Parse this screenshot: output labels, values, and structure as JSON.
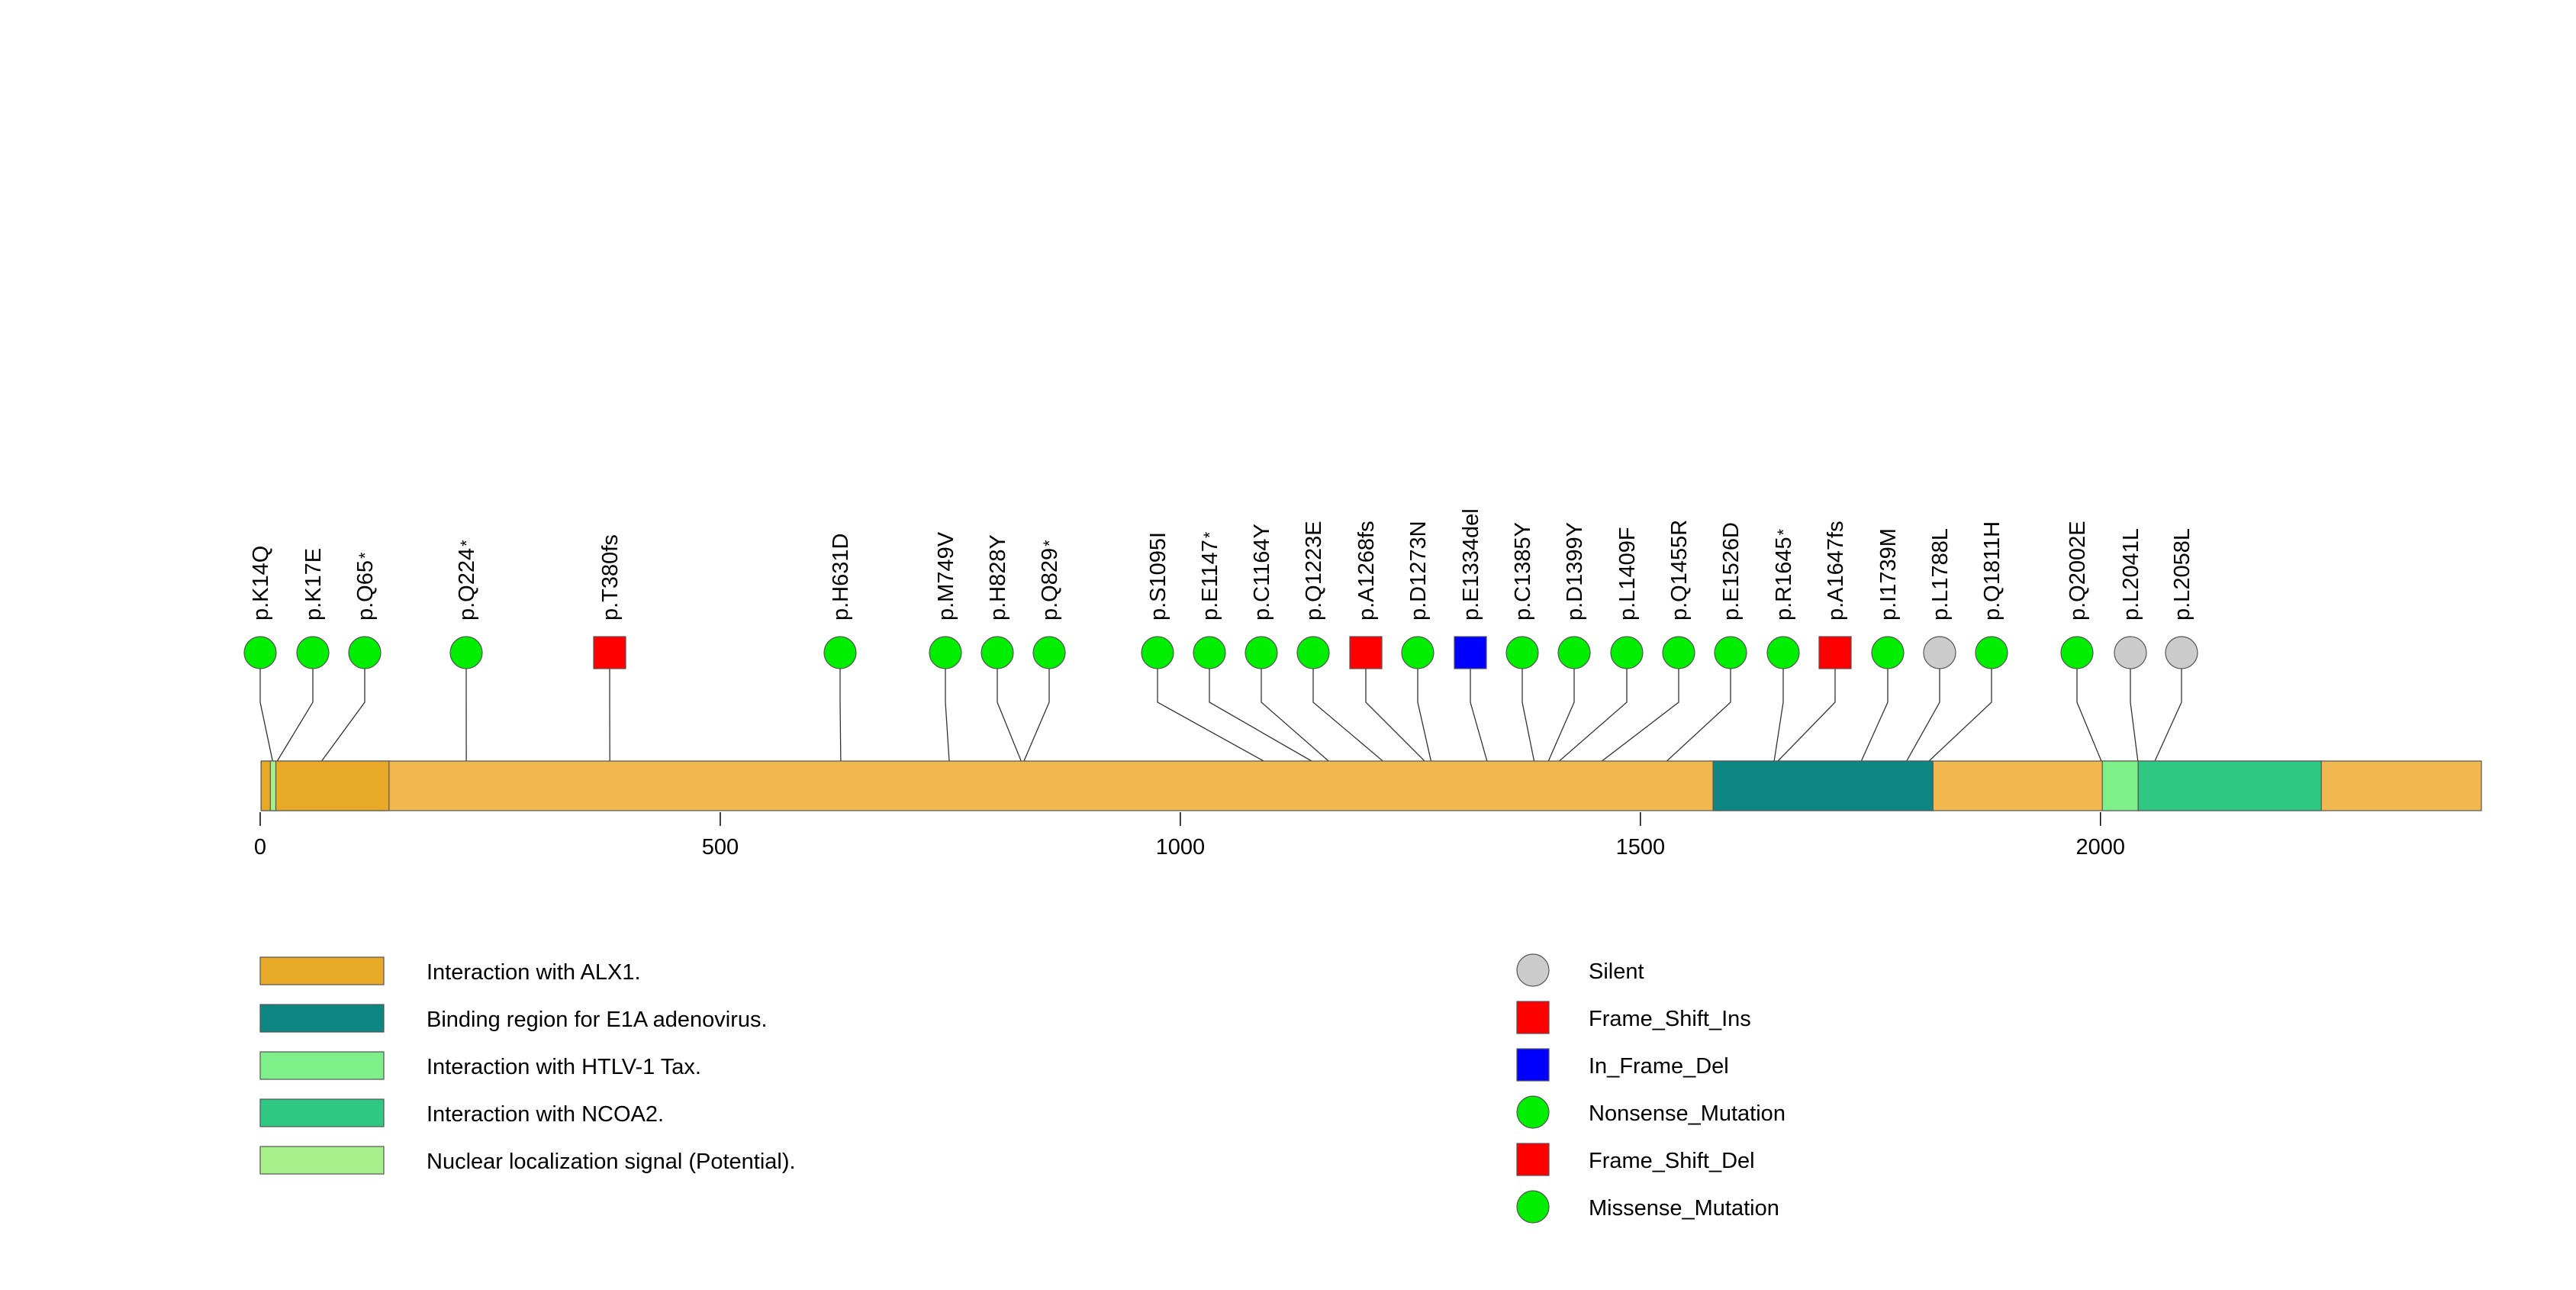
{
  "chart_data": {
    "type": "lollipop",
    "protein_length": 2414,
    "axis": {
      "ticks": [
        0,
        500,
        1000,
        1500,
        2000
      ]
    },
    "domains": [
      {
        "label": "Interaction with ALX1.",
        "start": 1,
        "end": 2414,
        "color": "#F0B84F"
      },
      {
        "label": "Interaction with ALX1.",
        "start": 1,
        "end": 140,
        "color": "#E9A928"
      },
      {
        "label": "Binding region for E1A adenovirus.",
        "start": 1579,
        "end": 1818,
        "color": "#0E8782"
      },
      {
        "label": "Interaction with HTLV-1 Tax.",
        "start": 2002,
        "end": 2041,
        "color": "#7EF08A"
      },
      {
        "label": "Interaction with NCOA2.",
        "start": 2041,
        "end": 2240,
        "color": "#2EC882"
      },
      {
        "label": "Nuclear localization signal (Potential).",
        "start": 11,
        "end": 17,
        "color": "#A6F08A"
      }
    ],
    "domain_legend": [
      {
        "label": "Interaction with ALX1.",
        "color": "#E9A928"
      },
      {
        "label": "Binding region for E1A adenovirus.",
        "color": "#0E8782"
      },
      {
        "label": "Interaction with HTLV-1 Tax.",
        "color": "#7EF08A"
      },
      {
        "label": "Interaction with NCOA2.",
        "color": "#2EC882"
      },
      {
        "label": "Nuclear localization signal (Potential).",
        "color": "#A6F08A"
      }
    ],
    "mutation_legend": [
      {
        "label": "Silent",
        "shape": "circle",
        "color": "#CCCCCC"
      },
      {
        "label": "Frame_Shift_Ins",
        "shape": "square",
        "color": "#FF0000"
      },
      {
        "label": "In_Frame_Del",
        "shape": "square",
        "color": "#0000FF"
      },
      {
        "label": "Nonsense_Mutation",
        "shape": "circle",
        "color": "#00EE00"
      },
      {
        "label": "Frame_Shift_Del",
        "shape": "square",
        "color": "#FF0000"
      },
      {
        "label": "Missense_Mutation",
        "shape": "circle",
        "color": "#00EE00"
      }
    ],
    "mutations": [
      {
        "label": "p.K14Q",
        "star": false,
        "pos": 14,
        "type": "circle",
        "color": "#00EE00"
      },
      {
        "label": "p.K17E",
        "star": false,
        "pos": 17,
        "type": "circle",
        "color": "#00EE00"
      },
      {
        "label": "p.Q65",
        "star": true,
        "pos": 65,
        "type": "circle",
        "color": "#00EE00"
      },
      {
        "label": "p.Q224",
        "star": true,
        "pos": 224,
        "type": "circle",
        "color": "#00EE00"
      },
      {
        "label": "p.T380fs",
        "star": false,
        "pos": 380,
        "type": "square",
        "color": "#FF0000"
      },
      {
        "label": "p.H631D",
        "star": false,
        "pos": 631,
        "type": "circle",
        "color": "#00EE00"
      },
      {
        "label": "p.M749V",
        "star": false,
        "pos": 749,
        "type": "circle",
        "color": "#00EE00"
      },
      {
        "label": "p.H828Y",
        "star": false,
        "pos": 828,
        "type": "circle",
        "color": "#00EE00"
      },
      {
        "label": "p.Q829",
        "star": true,
        "pos": 829,
        "type": "circle",
        "color": "#00EE00"
      },
      {
        "label": "p.S1095I",
        "star": false,
        "pos": 1095,
        "type": "circle",
        "color": "#00EE00"
      },
      {
        "label": "p.E1147",
        "star": true,
        "pos": 1147,
        "type": "circle",
        "color": "#00EE00"
      },
      {
        "label": "p.C1164Y",
        "star": false,
        "pos": 1164,
        "type": "circle",
        "color": "#00EE00"
      },
      {
        "label": "p.Q1223E",
        "star": false,
        "pos": 1223,
        "type": "circle",
        "color": "#00EE00"
      },
      {
        "label": "p.A1268fs",
        "star": false,
        "pos": 1268,
        "type": "square",
        "color": "#FF0000"
      },
      {
        "label": "p.D1273N",
        "star": false,
        "pos": 1273,
        "type": "circle",
        "color": "#00EE00"
      },
      {
        "label": "p.E1334del",
        "star": false,
        "pos": 1334,
        "type": "square",
        "color": "#0000FF"
      },
      {
        "label": "p.C1385Y",
        "star": false,
        "pos": 1385,
        "type": "circle",
        "color": "#00EE00"
      },
      {
        "label": "p.D1399Y",
        "star": false,
        "pos": 1399,
        "type": "circle",
        "color": "#00EE00"
      },
      {
        "label": "p.L1409F",
        "star": false,
        "pos": 1409,
        "type": "circle",
        "color": "#00EE00"
      },
      {
        "label": "p.Q1455R",
        "star": false,
        "pos": 1455,
        "type": "circle",
        "color": "#00EE00"
      },
      {
        "label": "p.E1526D",
        "star": false,
        "pos": 1526,
        "type": "circle",
        "color": "#00EE00"
      },
      {
        "label": "p.R1645",
        "star": true,
        "pos": 1645,
        "type": "circle",
        "color": "#00EE00"
      },
      {
        "label": "p.A1647fs",
        "star": false,
        "pos": 1647,
        "type": "square",
        "color": "#FF0000"
      },
      {
        "label": "p.I1739M",
        "star": false,
        "pos": 1739,
        "type": "circle",
        "color": "#00EE00"
      },
      {
        "label": "p.L1788L",
        "star": false,
        "pos": 1788,
        "type": "circle",
        "color": "#CCCCCC"
      },
      {
        "label": "p.Q1811H",
        "star": false,
        "pos": 1811,
        "type": "circle",
        "color": "#00EE00"
      },
      {
        "label": "p.Q2002E",
        "star": false,
        "pos": 2002,
        "type": "circle",
        "color": "#00EE00"
      },
      {
        "label": "p.L2041L",
        "star": false,
        "pos": 2041,
        "type": "circle",
        "color": "#CCCCCC"
      },
      {
        "label": "p.L2058L",
        "star": false,
        "pos": 2058,
        "type": "circle",
        "color": "#CCCCCC"
      }
    ]
  }
}
